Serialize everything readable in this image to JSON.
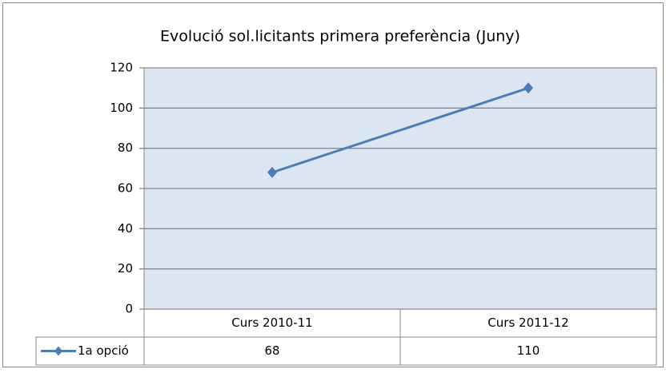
{
  "chart_data": {
    "type": "line",
    "title": "Evolució sol.licitants primera preferència (Juny)",
    "categories": [
      "Curs 2010-11",
      "Curs 2011-12"
    ],
    "series": [
      {
        "name": "1a opció",
        "color": "#4a7ebb",
        "values": [
          68,
          110
        ]
      }
    ],
    "ylim": [
      0,
      120
    ],
    "yticks": [
      0,
      20,
      40,
      60,
      80,
      100,
      120
    ],
    "grid": true,
    "plot_background": "#dce6f2",
    "data_table": true
  }
}
